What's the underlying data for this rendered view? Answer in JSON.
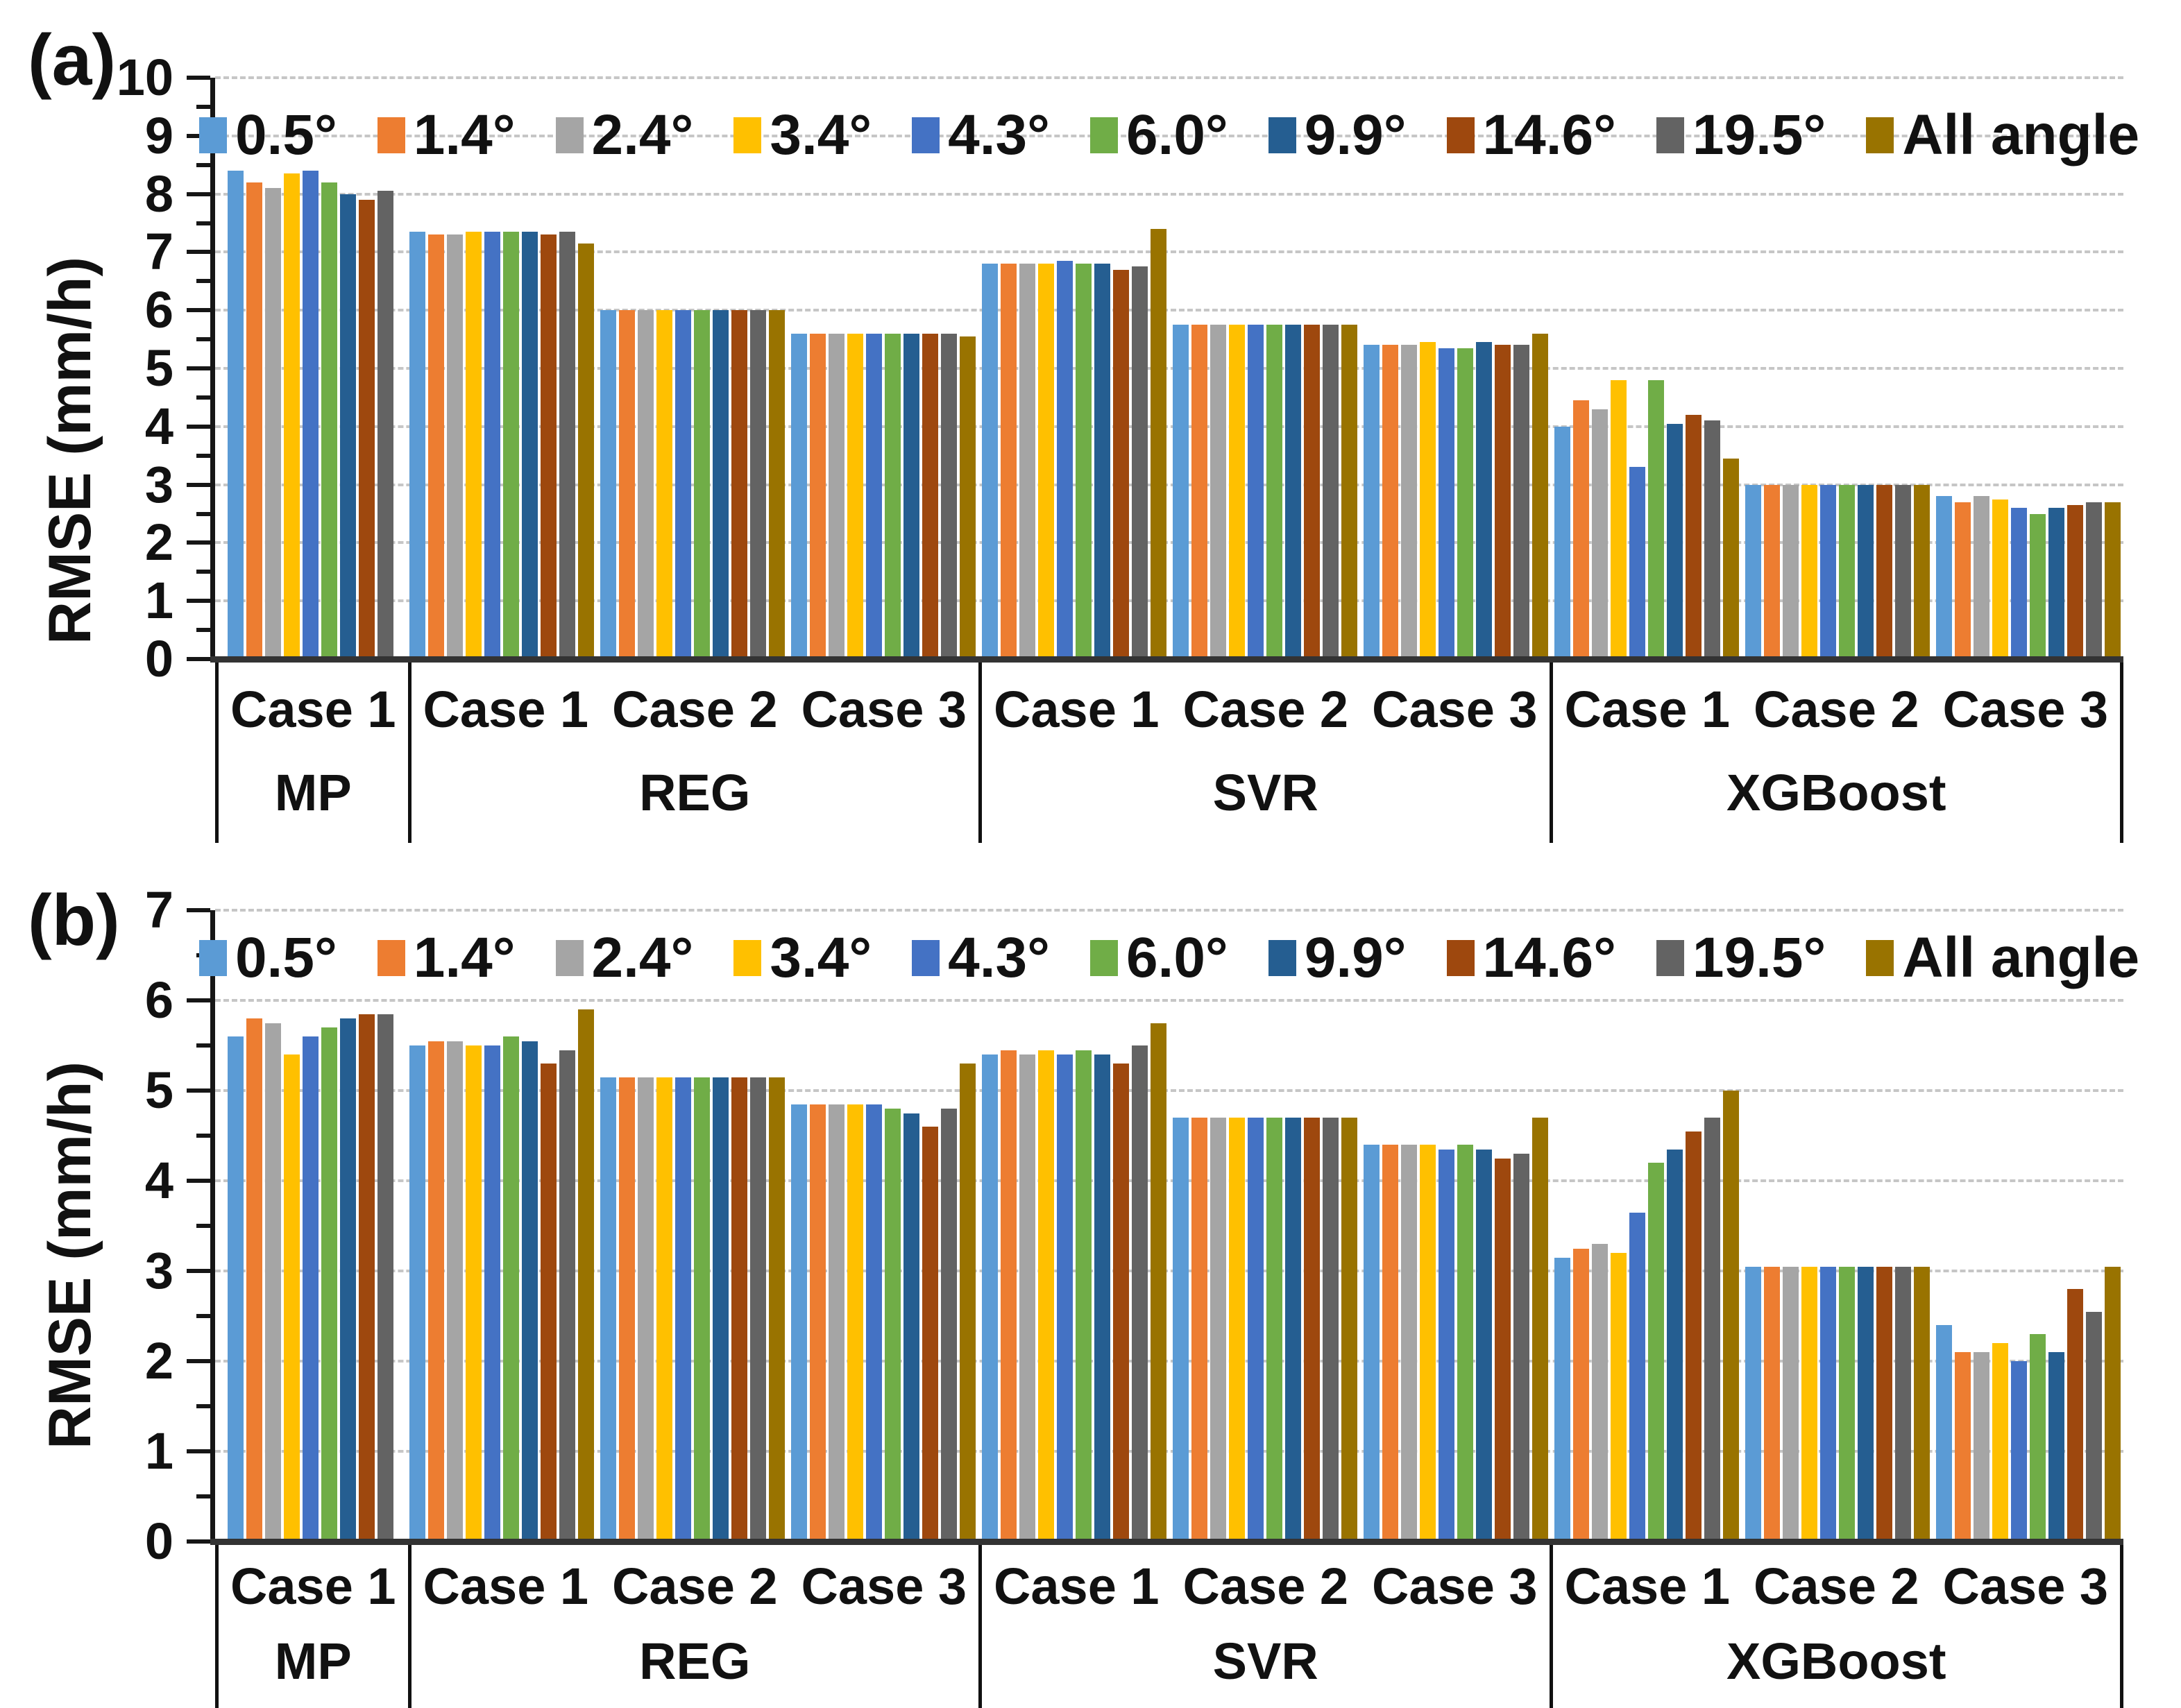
{
  "figure": {
    "background": "#ffffff",
    "panels": [
      "(a)",
      "(b)"
    ]
  },
  "legend": {
    "items": [
      {
        "label": "0.5°",
        "color": "#5B9BD5"
      },
      {
        "label": "1.4°",
        "color": "#ED7D31"
      },
      {
        "label": "2.4°",
        "color": "#A5A5A5"
      },
      {
        "label": "3.4°",
        "color": "#FFC000"
      },
      {
        "label": "4.3°",
        "color": "#4472C4"
      },
      {
        "label": "6.0°",
        "color": "#70AD47"
      },
      {
        "label": "9.9°",
        "color": "#255E91"
      },
      {
        "label": "14.6°",
        "color": "#9E480E"
      },
      {
        "label": "19.5°",
        "color": "#636363"
      },
      {
        "label": "All angle",
        "color": "#997300"
      }
    ]
  },
  "chart_data": [
    {
      "type": "bar",
      "panel": "(a)",
      "title": "",
      "xlabel": "",
      "ylabel": "RMSE (mm/h)",
      "ylim": [
        0,
        10
      ],
      "ytick_step": 1,
      "grid": "horizontal-dashed",
      "legend_position": "top-center-inside",
      "legend_entries": [
        "0.5°",
        "1.4°",
        "2.4°",
        "3.4°",
        "4.3°",
        "6.0°",
        "9.9°",
        "14.6°",
        "19.5°",
        "All angle"
      ],
      "models": [
        {
          "label": "MP",
          "cases": [
            {
              "label": "Case 1",
              "values": [
                8.4,
                8.2,
                8.1,
                8.35,
                8.4,
                8.2,
                8.0,
                7.9,
                8.05,
                null
              ]
            }
          ]
        },
        {
          "label": "REG",
          "cases": [
            {
              "label": "Case 1",
              "values": [
                7.35,
                7.3,
                7.3,
                7.35,
                7.35,
                7.35,
                7.35,
                7.3,
                7.35,
                7.15
              ]
            },
            {
              "label": "Case 2",
              "values": [
                6.0,
                6.0,
                6.0,
                6.0,
                6.0,
                6.0,
                6.0,
                6.0,
                6.0,
                6.0
              ]
            },
            {
              "label": "Case 3",
              "values": [
                5.6,
                5.6,
                5.6,
                5.6,
                5.6,
                5.6,
                5.6,
                5.6,
                5.6,
                5.55
              ]
            }
          ]
        },
        {
          "label": "SVR",
          "cases": [
            {
              "label": "Case 1",
              "values": [
                6.8,
                6.8,
                6.8,
                6.8,
                6.85,
                6.8,
                6.8,
                6.7,
                6.75,
                7.4
              ]
            },
            {
              "label": "Case 2",
              "values": [
                5.75,
                5.75,
                5.75,
                5.75,
                5.75,
                5.75,
                5.75,
                5.75,
                5.75,
                5.75
              ]
            },
            {
              "label": "Case 3",
              "values": [
                5.4,
                5.4,
                5.4,
                5.45,
                5.35,
                5.35,
                5.45,
                5.4,
                5.4,
                5.6
              ]
            }
          ]
        },
        {
          "label": "XGBoost",
          "cases": [
            {
              "label": "Case 1",
              "values": [
                4.0,
                4.45,
                4.3,
                4.8,
                3.3,
                4.8,
                4.05,
                4.2,
                4.1,
                3.45
              ]
            },
            {
              "label": "Case 2",
              "values": [
                3.0,
                3.0,
                3.0,
                3.0,
                3.0,
                3.0,
                3.0,
                3.0,
                3.0,
                3.0
              ]
            },
            {
              "label": "Case 3",
              "values": [
                2.8,
                2.7,
                2.8,
                2.75,
                2.6,
                2.5,
                2.6,
                2.65,
                2.7,
                2.7
              ]
            }
          ]
        }
      ]
    },
    {
      "type": "bar",
      "panel": "(b)",
      "title": "",
      "xlabel": "",
      "ylabel": "RMSE (mm/h)",
      "ylim": [
        0,
        7
      ],
      "ytick_step": 1,
      "grid": "horizontal-dashed",
      "legend_position": "top-center-inside",
      "legend_entries": [
        "0.5°",
        "1.4°",
        "2.4°",
        "3.4°",
        "4.3°",
        "6.0°",
        "9.9°",
        "14.6°",
        "19.5°",
        "All angle"
      ],
      "models": [
        {
          "label": "MP",
          "cases": [
            {
              "label": "Case 1",
              "values": [
                5.6,
                5.8,
                5.75,
                5.4,
                5.6,
                5.7,
                5.8,
                5.85,
                5.85,
                null
              ]
            }
          ]
        },
        {
          "label": "REG",
          "cases": [
            {
              "label": "Case 1",
              "values": [
                5.5,
                5.55,
                5.55,
                5.5,
                5.5,
                5.6,
                5.55,
                5.3,
                5.45,
                5.9
              ]
            },
            {
              "label": "Case 2",
              "values": [
                5.15,
                5.15,
                5.15,
                5.15,
                5.15,
                5.15,
                5.15,
                5.15,
                5.15,
                5.15
              ]
            },
            {
              "label": "Case 3",
              "values": [
                4.85,
                4.85,
                4.85,
                4.85,
                4.85,
                4.8,
                4.75,
                4.6,
                4.8,
                5.3
              ]
            }
          ]
        },
        {
          "label": "SVR",
          "cases": [
            {
              "label": "Case 1",
              "values": [
                5.4,
                5.45,
                5.4,
                5.45,
                5.4,
                5.45,
                5.4,
                5.3,
                5.5,
                5.75
              ]
            },
            {
              "label": "Case 2",
              "values": [
                4.7,
                4.7,
                4.7,
                4.7,
                4.7,
                4.7,
                4.7,
                4.7,
                4.7,
                4.7
              ]
            },
            {
              "label": "Case 3",
              "values": [
                4.4,
                4.4,
                4.4,
                4.4,
                4.35,
                4.4,
                4.35,
                4.25,
                4.3,
                4.7
              ]
            }
          ]
        },
        {
          "label": "XGBoost",
          "cases": [
            {
              "label": "Case 1",
              "values": [
                3.15,
                3.25,
                3.3,
                3.2,
                3.65,
                4.2,
                4.35,
                4.55,
                4.7,
                5.0
              ]
            },
            {
              "label": "Case 2",
              "values": [
                3.05,
                3.05,
                3.05,
                3.05,
                3.05,
                3.05,
                3.05,
                3.05,
                3.05,
                3.05
              ]
            },
            {
              "label": "Case 3",
              "values": [
                2.4,
                2.1,
                2.1,
                2.2,
                2.0,
                2.3,
                2.1,
                2.8,
                2.55,
                3.05
              ]
            }
          ]
        }
      ]
    }
  ]
}
